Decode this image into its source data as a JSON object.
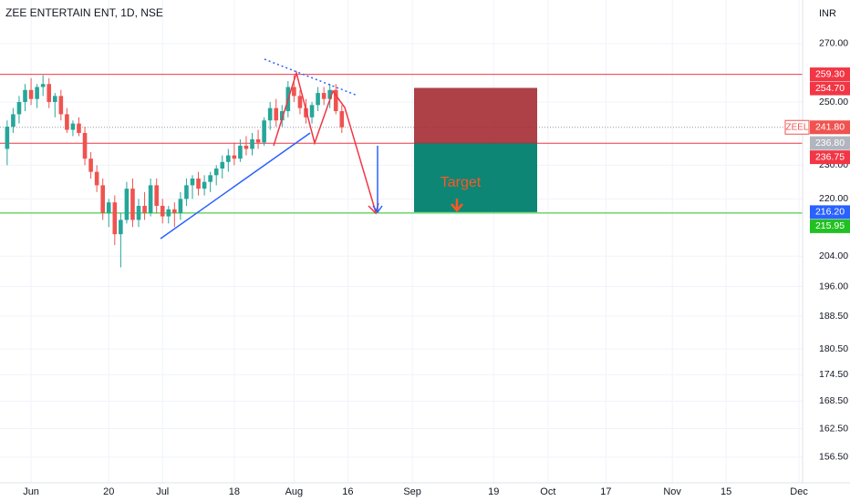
{
  "chart_data": {
    "type": "candlestick",
    "title": "ZEE ENTERTAIN ENT, 1D, NSE",
    "currency": "INR",
    "log_scale": true,
    "grid": true,
    "up_color": "#26a69a",
    "down_color": "#ef5350",
    "ylim": [
      151.3,
      286.0
    ],
    "yticks": [
      {
        "value": 270,
        "label": "270.00"
      },
      {
        "value": 250,
        "label": "250.00"
      },
      {
        "value": 230,
        "label": "230.00"
      },
      {
        "value": 220,
        "label": "220.00"
      },
      {
        "value": 204,
        "label": "204.00"
      },
      {
        "value": 196,
        "label": "196.00"
      },
      {
        "value": 188.5,
        "label": "188.50"
      },
      {
        "value": 180.5,
        "label": "180.50"
      },
      {
        "value": 174.5,
        "label": "174.50"
      },
      {
        "value": 168.5,
        "label": "168.50"
      },
      {
        "value": 162.5,
        "label": "162.50"
      },
      {
        "value": 156.5,
        "label": "156.50"
      }
    ],
    "xlim": [
      -1.2,
      133.1
    ],
    "xticks": [
      {
        "value": 4,
        "label": "Jun"
      },
      {
        "value": 17,
        "label": "20"
      },
      {
        "value": 26,
        "label": "Jul"
      },
      {
        "value": 38,
        "label": "18"
      },
      {
        "value": 48,
        "label": "Aug"
      },
      {
        "value": 57,
        "label": "16"
      },
      {
        "value": 67.8,
        "label": "Sep"
      },
      {
        "value": 81.4,
        "label": "19"
      },
      {
        "value": 90.5,
        "label": "Oct"
      },
      {
        "value": 100.2,
        "label": "17"
      },
      {
        "value": 111.3,
        "label": "Nov"
      },
      {
        "value": 120.3,
        "label": "15"
      },
      {
        "value": 132.5,
        "label": "Dec"
      }
    ],
    "ohlc": [
      [
        235,
        244,
        230,
        242
      ],
      [
        242,
        248,
        240,
        246
      ],
      [
        246,
        252,
        243,
        250
      ],
      [
        250,
        256,
        247,
        254
      ],
      [
        254,
        258,
        249,
        251
      ],
      [
        251,
        256,
        248,
        255
      ],
      [
        255,
        259,
        252,
        256
      ],
      [
        256,
        258,
        248,
        250
      ],
      [
        250,
        253,
        245,
        252
      ],
      [
        252,
        254,
        244,
        246
      ],
      [
        246,
        248,
        240,
        241
      ],
      [
        241,
        244,
        239,
        243
      ],
      [
        243,
        245,
        239,
        240
      ],
      [
        240,
        242,
        230,
        232
      ],
      [
        232,
        234,
        226,
        228
      ],
      [
        228,
        230,
        222,
        224
      ],
      [
        224,
        226,
        214,
        216
      ],
      [
        216,
        220,
        212,
        219
      ],
      [
        219,
        221,
        207,
        210
      ],
      [
        210,
        216,
        201,
        214
      ],
      [
        214,
        225,
        213,
        223
      ],
      [
        223,
        226,
        212,
        214
      ],
      [
        214,
        220,
        212,
        218
      ],
      [
        218,
        222,
        214,
        216
      ],
      [
        216,
        226,
        215,
        224
      ],
      [
        224,
        226,
        216,
        218
      ],
      [
        218,
        220,
        213,
        215
      ],
      [
        215,
        218,
        213,
        217
      ],
      [
        217,
        219,
        212,
        216
      ],
      [
        216,
        222,
        214,
        220
      ],
      [
        220,
        226,
        218,
        224
      ],
      [
        224,
        227,
        220,
        226
      ],
      [
        226,
        228,
        221,
        223
      ],
      [
        223,
        227,
        221,
        225
      ],
      [
        225,
        228,
        222,
        227
      ],
      [
        227,
        230,
        224,
        229
      ],
      [
        229,
        233,
        226,
        231
      ],
      [
        231,
        235,
        228,
        233
      ],
      [
        233,
        237,
        230,
        232
      ],
      [
        232,
        238,
        231,
        236
      ],
      [
        236,
        239,
        233,
        235
      ],
      [
        235,
        240,
        233,
        238
      ],
      [
        238,
        241,
        235,
        237
      ],
      [
        237,
        245,
        236,
        244
      ],
      [
        244,
        250,
        241,
        248
      ],
      [
        248,
        251,
        242,
        244
      ],
      [
        244,
        249,
        242,
        247
      ],
      [
        247,
        257,
        245,
        255
      ],
      [
        255,
        259,
        250,
        252
      ],
      [
        252,
        254,
        246,
        248
      ],
      [
        248,
        251,
        243,
        245
      ],
      [
        245,
        250,
        243,
        249
      ],
      [
        249,
        255,
        247,
        253
      ],
      [
        253,
        255,
        249,
        251
      ],
      [
        251,
        256,
        248,
        254
      ],
      [
        254,
        256,
        246,
        247
      ],
      [
        247,
        249,
        240,
        241.8
      ]
    ],
    "price_labels": [
      {
        "value": 259.3,
        "label": "259.30",
        "color": "#f23645",
        "line": "solid"
      },
      {
        "value": 254.7,
        "label": "254.70",
        "color": "#f23645"
      },
      {
        "value": 241.8,
        "label": "241.80",
        "color": "#ef5350",
        "symbol": "ZEEL",
        "line": "dotted"
      },
      {
        "value": 236.8,
        "label": "236.80",
        "color": "#b2b5be"
      },
      {
        "value": 236.75,
        "label": "236.75",
        "color": "#f23645",
        "line": "solid"
      },
      {
        "value": 216.2,
        "label": "216.20",
        "color": "#2962ff"
      },
      {
        "value": 215.95,
        "label": "215.95",
        "color": "#22c122",
        "line": "solid"
      }
    ],
    "annotation": "Target"
  }
}
